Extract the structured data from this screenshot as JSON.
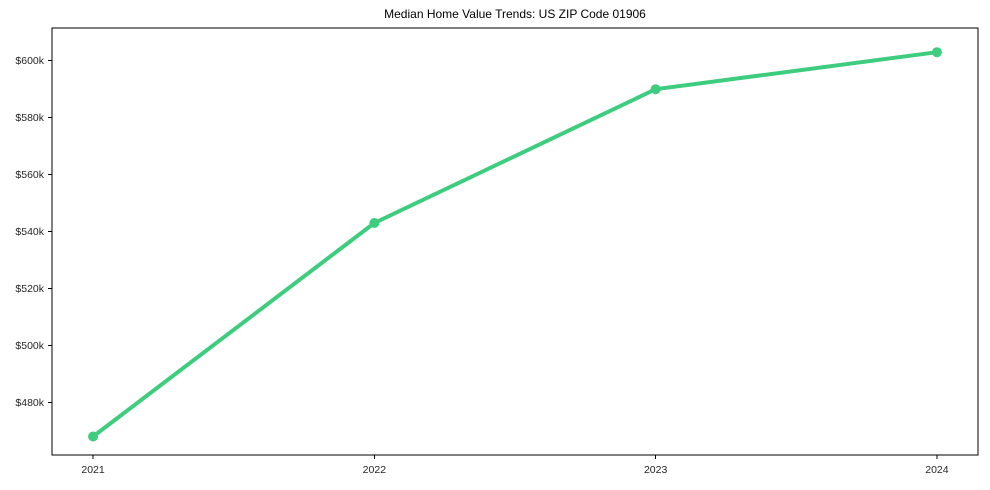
{
  "chart_data": {
    "type": "line",
    "title": "Median Home Value Trends: US ZIP Code 01906",
    "xlabel": "",
    "ylabel": "",
    "x": [
      2021,
      2022,
      2023,
      2024
    ],
    "x_tick_labels": [
      "2021",
      "2022",
      "2023",
      "2024"
    ],
    "series": [
      {
        "name": "Median Home Value",
        "values": [
          468000,
          543000,
          590000,
          603000
        ],
        "color": "#3ecd7f"
      }
    ],
    "y_tick_values": [
      480000,
      500000,
      520000,
      540000,
      560000,
      580000,
      600000
    ],
    "y_tick_labels": [
      "$480k",
      "$500k",
      "$520k",
      "$540k",
      "$560k",
      "$580k",
      "$600k"
    ],
    "xlim": [
      2020.854,
      2024.146
    ],
    "ylim": [
      461500,
      611500
    ],
    "grid": false,
    "legend_position": "none",
    "background_color": "#ffffff",
    "spine_color": "#000000",
    "tick_label_color": "#262626"
  }
}
